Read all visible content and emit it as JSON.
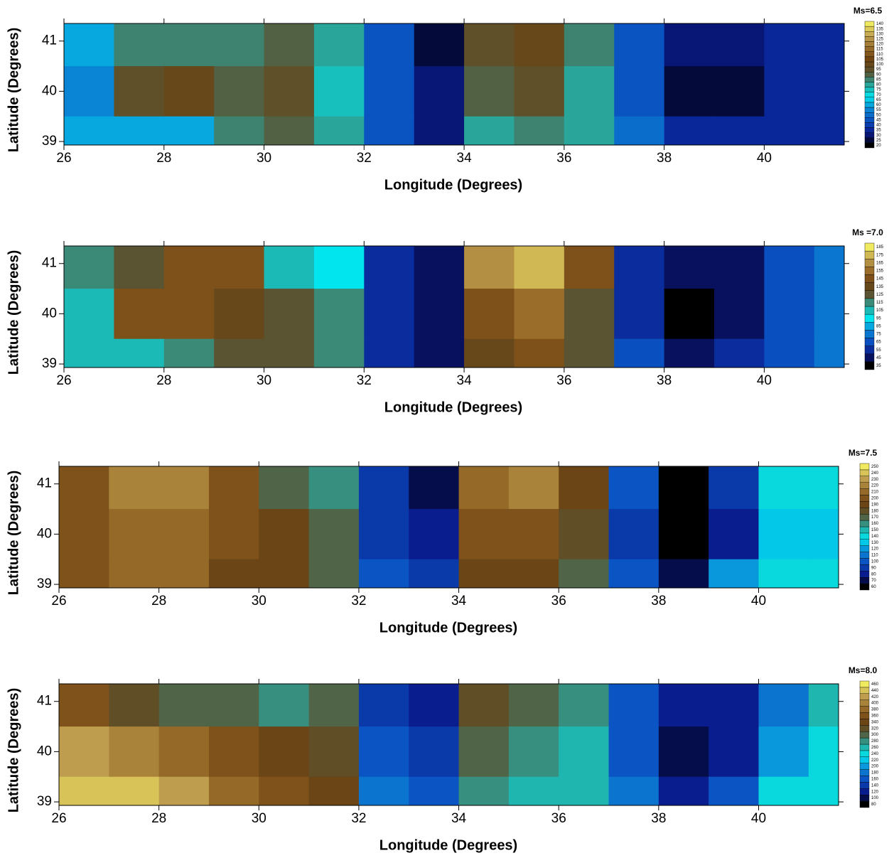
{
  "chart_data": [
    {
      "type": "contour",
      "title": "Ms=6.5",
      "xlabel": "Longitude (Degrees)",
      "ylabel": "Latitude (Degrees)",
      "xlim": [
        26,
        41.6
      ],
      "ylim": [
        38.93,
        41.35
      ],
      "xticks": [
        26,
        28,
        30,
        32,
        34,
        36,
        38,
        40
      ],
      "yticks": [
        39,
        40,
        41
      ],
      "x": [
        26.5,
        27.5,
        28.5,
        29.5,
        30.5,
        31.5,
        32.5,
        33.5,
        34.5,
        35.5,
        36.5,
        37.5,
        38.5,
        39.5,
        40.5,
        41.5
      ],
      "y": [
        41,
        40,
        39
      ],
      "z": [
        [
          60,
          85,
          85,
          85,
          90,
          80,
          45,
          25,
          95,
          100,
          85,
          45,
          30,
          30,
          35,
          35
        ],
        [
          55,
          95,
          100,
          90,
          95,
          75,
          45,
          30,
          90,
          95,
          80,
          45,
          25,
          25,
          35,
          35
        ],
        [
          60,
          60,
          60,
          85,
          90,
          80,
          45,
          30,
          80,
          85,
          80,
          50,
          35,
          35,
          35,
          35
        ]
      ],
      "levels": [
        20,
        25,
        30,
        35,
        40,
        45,
        50,
        55,
        60,
        65,
        70,
        75,
        80,
        85,
        90,
        95,
        100,
        105,
        110,
        115,
        120,
        125,
        130,
        135,
        140
      ],
      "colormap": [
        "#000000",
        "#0a1a8c",
        "#0a4fc0",
        "#0a8ad8",
        "#00e5ee",
        "#2aa59a",
        "#5a5432",
        "#6e4210",
        "#9a6e2a",
        "#c0a050",
        "#f0ea60"
      ]
    },
    {
      "type": "contour",
      "title": "Ms =7.0",
      "xlabel": "Longitude (Degrees)",
      "ylabel": "Latitude (Degrees)",
      "xlim": [
        26,
        41.6
      ],
      "ylim": [
        38.93,
        41.35
      ],
      "xticks": [
        26,
        28,
        30,
        32,
        34,
        36,
        38,
        40
      ],
      "yticks": [
        39,
        40,
        41
      ],
      "x": [
        26.5,
        27.5,
        28.5,
        29.5,
        30.5,
        31.5,
        32.5,
        33.5,
        34.5,
        35.5,
        36.5,
        37.5,
        38.5,
        39.5,
        40.5,
        41.5
      ],
      "y": [
        41,
        40,
        39
      ],
      "z": [
        [
          115,
          130,
          145,
          145,
          105,
          95,
          55,
          45,
          165,
          175,
          145,
          55,
          45,
          45,
          65,
          75
        ],
        [
          110,
          145,
          150,
          140,
          130,
          115,
          55,
          45,
          150,
          160,
          130,
          55,
          35,
          45,
          65,
          75
        ],
        [
          105,
          110,
          115,
          125,
          125,
          115,
          55,
          45,
          140,
          145,
          125,
          65,
          45,
          55,
          65,
          75
        ]
      ],
      "levels": [
        35,
        45,
        55,
        65,
        75,
        85,
        95,
        105,
        115,
        125,
        135,
        145,
        155,
        165,
        175,
        185
      ],
      "colormap": [
        "#000000",
        "#0a1a8c",
        "#0a4fc0",
        "#0a8ad8",
        "#00e5ee",
        "#2aa59a",
        "#5a5432",
        "#6e4210",
        "#9a6e2a",
        "#c0a050",
        "#f0ea60"
      ]
    },
    {
      "type": "contour",
      "title": "Ms=7.5",
      "xlabel": "Longitude (Degrees)",
      "ylabel": "Latitude (Degrees)",
      "xlim": [
        26,
        41.6
      ],
      "ylim": [
        38.93,
        41.35
      ],
      "xticks": [
        26,
        28,
        30,
        32,
        34,
        36,
        38,
        40
      ],
      "yticks": [
        39,
        40,
        41
      ],
      "x": [
        26.5,
        27.5,
        28.5,
        29.5,
        30.5,
        31.5,
        32.5,
        33.5,
        34.5,
        35.5,
        36.5,
        37.5,
        38.5,
        39.5,
        40.5,
        41.5
      ],
      "y": [
        41,
        40,
        39
      ],
      "z": [
        [
          200,
          220,
          220,
          200,
          170,
          165,
          90,
          70,
          210,
          225,
          190,
          100,
          60,
          90,
          140,
          140
        ],
        [
          200,
          215,
          215,
          200,
          190,
          175,
          90,
          80,
          200,
          205,
          180,
          90,
          60,
          80,
          130,
          130
        ],
        [
          200,
          210,
          210,
          195,
          190,
          175,
          100,
          90,
          190,
          190,
          170,
          100,
          70,
          120,
          140,
          140
        ]
      ],
      "levels": [
        60,
        70,
        80,
        90,
        100,
        110,
        120,
        130,
        140,
        150,
        160,
        170,
        180,
        190,
        200,
        210,
        220,
        230,
        240,
        250
      ],
      "colormap": [
        "#000000",
        "#0a1a8c",
        "#0a4fc0",
        "#0a8ad8",
        "#00e5ee",
        "#2aa59a",
        "#5a5432",
        "#6e4210",
        "#9a6e2a",
        "#c0a050",
        "#f0ea60"
      ]
    },
    {
      "type": "contour",
      "title": "Ms=8.0",
      "xlabel": "Longitude (Degrees)",
      "ylabel": "Latitude (Degrees)",
      "xlim": [
        26,
        41.6
      ],
      "ylim": [
        38.93,
        41.35
      ],
      "xticks": [
        26,
        28,
        30,
        32,
        34,
        36,
        38,
        40
      ],
      "yticks": [
        39,
        40,
        41
      ],
      "x": [
        26.5,
        27.5,
        28.5,
        29.5,
        30.5,
        31.5,
        32.5,
        33.5,
        34.5,
        35.5,
        36.5,
        37.5,
        38.5,
        39.5,
        40.5,
        41.5
      ],
      "y": [
        41,
        40,
        39
      ],
      "z": [
        [
          360,
          330,
          310,
          300,
          290,
          300,
          150,
          120,
          320,
          300,
          280,
          160,
          120,
          120,
          180,
          260
        ],
        [
          420,
          400,
          380,
          360,
          340,
          320,
          160,
          140,
          300,
          280,
          260,
          160,
          100,
          120,
          200,
          250
        ],
        [
          440,
          440,
          420,
          380,
          360,
          340,
          180,
          160,
          280,
          260,
          260,
          180,
          120,
          160,
          240,
          250
        ]
      ],
      "levels": [
        80,
        100,
        120,
        140,
        160,
        180,
        200,
        220,
        240,
        260,
        280,
        300,
        320,
        340,
        360,
        380,
        400,
        420,
        440,
        460
      ],
      "colormap": [
        "#000000",
        "#0a1a8c",
        "#0a4fc0",
        "#0a8ad8",
        "#00e5ee",
        "#2aa59a",
        "#5a5432",
        "#6e4210",
        "#9a6e2a",
        "#c0a050",
        "#f0ea60"
      ]
    }
  ]
}
